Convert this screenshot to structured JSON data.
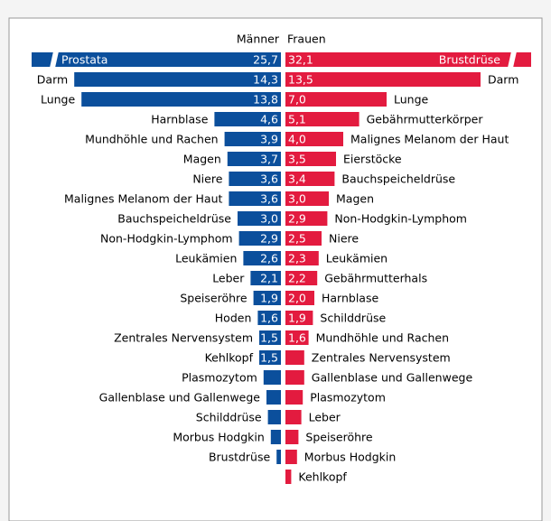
{
  "chart_data": {
    "type": "butterfly",
    "series": [
      {
        "name": "Männer",
        "color": "#0b4f9c",
        "categories": [
          "Prostata",
          "Darm",
          "Lunge",
          "Harnblase",
          "Mundhöhle und Rachen",
          "Magen",
          "Niere",
          "Malignes Melanom der Haut",
          "Bauchspeicheldrüse",
          "Non-Hodgkin-Lymphom",
          "Leukämien",
          "Leber",
          "Speiseröhre",
          "Hoden",
          "Zentrales Nervensystem",
          "Kehlkopf",
          "Plasmozytom",
          "Gallenblase und Gallenwege",
          "Schilddrüse",
          "Morbus Hodgkin",
          "Brustdrüse"
        ],
        "values": [
          25.7,
          14.3,
          13.8,
          4.6,
          3.9,
          3.7,
          3.6,
          3.6,
          3.0,
          2.9,
          2.6,
          2.1,
          1.9,
          1.6,
          1.5,
          1.5,
          1.2,
          1.0,
          0.9,
          0.7,
          0.3
        ],
        "value_labels": [
          "25,7",
          "14,3",
          "13,8",
          "4,6",
          "3,9",
          "3,7",
          "3,6",
          "3,6",
          "3,0",
          "2,9",
          "2,6",
          "2,1",
          "1,9",
          "1,6",
          "1,5",
          "1,5",
          null,
          null,
          null,
          null,
          null
        ]
      },
      {
        "name": "Frauen",
        "color": "#e31b3f",
        "categories": [
          "Brustdrüse",
          "Darm",
          "Lunge",
          "Gebährmutterkörper",
          "Malignes Melanom der Haut",
          "Eierstöcke",
          "Bauchspeicheldrüse",
          "Magen",
          "Non-Hodgkin-Lymphom",
          "Niere",
          "Leukämien",
          "Gebährmutterhals",
          "Harnblase",
          "Schilddrüse",
          "Mundhöhle und Rachen",
          "Zentrales Nervensystem",
          "Gallenblase und Gallenwege",
          "Plasmozytom",
          "Leber",
          "Speiseröhre",
          "Morbus Hodgkin",
          "Kehlkopf"
        ],
        "values": [
          32.1,
          13.5,
          7.0,
          5.1,
          4.0,
          3.5,
          3.4,
          3.0,
          2.9,
          2.5,
          2.3,
          2.2,
          2.0,
          1.9,
          1.6,
          1.3,
          1.3,
          1.2,
          1.1,
          0.9,
          0.8,
          0.4
        ],
        "value_labels": [
          "32,1",
          "13,5",
          "7,0",
          "5,1",
          "4,0",
          "3,5",
          "3,4",
          "3,0",
          "2,9",
          "2,5",
          "2,3",
          "2,2",
          "2,0",
          "1,9",
          "1,6",
          null,
          null,
          null,
          null,
          null,
          null,
          null
        ]
      }
    ]
  }
}
